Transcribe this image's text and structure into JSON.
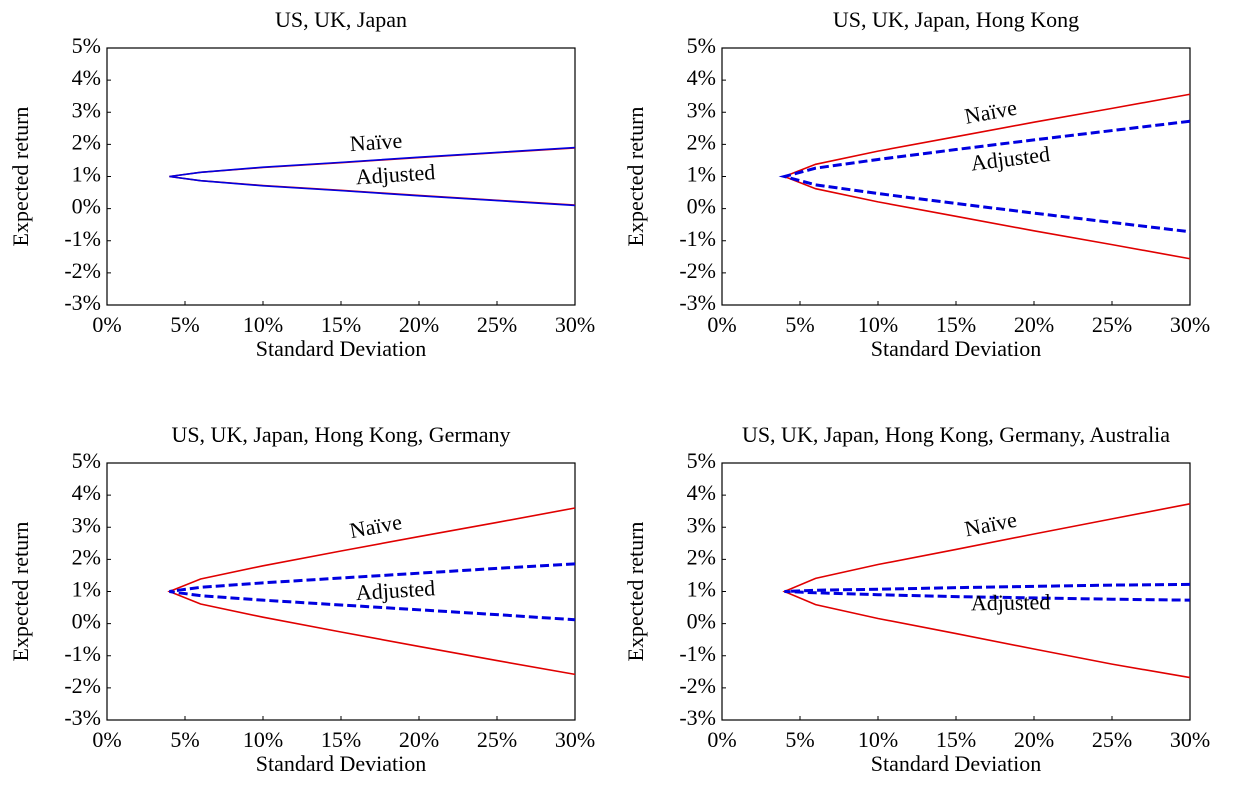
{
  "chart_data": [
    {
      "type": "line",
      "title": "US, UK, Japan",
      "x_label": "Standard Deviation",
      "y_label": "Expected return",
      "xlim": [
        0,
        30
      ],
      "ylim": [
        -3,
        5
      ],
      "xticks": [
        {
          "value": 0,
          "label": "0%"
        },
        {
          "value": 5,
          "label": "5%"
        },
        {
          "value": 10,
          "label": "10%"
        },
        {
          "value": 15,
          "label": "15%"
        },
        {
          "value": 20,
          "label": "20%"
        },
        {
          "value": 25,
          "label": "25%"
        },
        {
          "value": 30,
          "label": "30%"
        }
      ],
      "yticks": [
        {
          "value": -3,
          "label": "-3%"
        },
        {
          "value": -2,
          "label": "-2%"
        },
        {
          "value": -1,
          "label": "-1%"
        },
        {
          "value": 0,
          "label": "0%"
        },
        {
          "value": 1,
          "label": "1%"
        },
        {
          "value": 2,
          "label": "2%"
        },
        {
          "value": 3,
          "label": "3%"
        },
        {
          "value": 4,
          "label": "4%"
        },
        {
          "value": 5,
          "label": "5%"
        }
      ],
      "series": [
        {
          "name": "Naïve",
          "color": "#e00000",
          "line_style": "solid",
          "x": [
            30,
            25,
            20,
            15,
            10,
            6,
            4,
            6,
            10,
            15,
            20,
            25,
            30
          ],
          "values": [
            1.89,
            1.74,
            1.59,
            1.43,
            1.28,
            1.13,
            1.0,
            0.87,
            0.72,
            0.57,
            0.41,
            0.26,
            0.11
          ]
        },
        {
          "name": "Adjusted",
          "color": "#0000e0",
          "line_style": "solid",
          "x": [
            30,
            25,
            20,
            15,
            10,
            6,
            4,
            6,
            10,
            15,
            20,
            25,
            30
          ],
          "values": [
            1.9,
            1.75,
            1.6,
            1.44,
            1.29,
            1.13,
            1.0,
            0.87,
            0.71,
            0.56,
            0.4,
            0.25,
            0.1
          ]
        }
      ]
    },
    {
      "type": "line",
      "title": "US, UK, Japan, Hong Kong",
      "x_label": "Standard Deviation",
      "y_label": "Expected return",
      "xlim": [
        0,
        30
      ],
      "ylim": [
        -3,
        5
      ],
      "xticks": [
        {
          "value": 0,
          "label": "0%"
        },
        {
          "value": 5,
          "label": "5%"
        },
        {
          "value": 10,
          "label": "10%"
        },
        {
          "value": 15,
          "label": "15%"
        },
        {
          "value": 20,
          "label": "20%"
        },
        {
          "value": 25,
          "label": "25%"
        },
        {
          "value": 30,
          "label": "30%"
        }
      ],
      "yticks": [
        {
          "value": -3,
          "label": "-3%"
        },
        {
          "value": -2,
          "label": "-2%"
        },
        {
          "value": -1,
          "label": "-1%"
        },
        {
          "value": 0,
          "label": "0%"
        },
        {
          "value": 1,
          "label": "1%"
        },
        {
          "value": 2,
          "label": "2%"
        },
        {
          "value": 3,
          "label": "3%"
        },
        {
          "value": 4,
          "label": "4%"
        },
        {
          "value": 5,
          "label": "5%"
        }
      ],
      "series": [
        {
          "name": "Naïve",
          "color": "#e00000",
          "line_style": "solid",
          "x": [
            30,
            25,
            20,
            15,
            10,
            6,
            4,
            6,
            10,
            15,
            20,
            25,
            30
          ],
          "values": [
            3.56,
            3.12,
            2.69,
            2.24,
            1.79,
            1.38,
            1.0,
            0.62,
            0.21,
            -0.24,
            -0.69,
            -1.12,
            -1.56
          ]
        },
        {
          "name": "Adjusted",
          "color": "#0000e0",
          "line_style": "dashed",
          "x": [
            30,
            25,
            20,
            15,
            10,
            6,
            4,
            6,
            10,
            15,
            20,
            25,
            30
          ],
          "values": [
            2.72,
            2.43,
            2.14,
            1.84,
            1.53,
            1.26,
            1.0,
            0.74,
            0.47,
            0.16,
            -0.14,
            -0.43,
            -0.72
          ]
        }
      ]
    },
    {
      "type": "line",
      "title": "US, UK, Japan, Hong Kong, Germany",
      "x_label": "Standard Deviation",
      "y_label": "Expected return",
      "xlim": [
        0,
        30
      ],
      "ylim": [
        -3,
        5
      ],
      "xticks": [
        {
          "value": 0,
          "label": "0%"
        },
        {
          "value": 5,
          "label": "5%"
        },
        {
          "value": 10,
          "label": "10%"
        },
        {
          "value": 15,
          "label": "15%"
        },
        {
          "value": 20,
          "label": "20%"
        },
        {
          "value": 25,
          "label": "25%"
        },
        {
          "value": 30,
          "label": "30%"
        }
      ],
      "yticks": [
        {
          "value": -3,
          "label": "-3%"
        },
        {
          "value": -2,
          "label": "-2%"
        },
        {
          "value": -1,
          "label": "-1%"
        },
        {
          "value": 0,
          "label": "0%"
        },
        {
          "value": 1,
          "label": "1%"
        },
        {
          "value": 2,
          "label": "2%"
        },
        {
          "value": 3,
          "label": "3%"
        },
        {
          "value": 4,
          "label": "4%"
        },
        {
          "value": 5,
          "label": "5%"
        }
      ],
      "series": [
        {
          "name": "Naïve",
          "color": "#e00000",
          "line_style": "solid",
          "x": [
            30,
            25,
            20,
            15,
            10,
            6,
            4,
            6,
            10,
            15,
            20,
            25,
            30
          ],
          "values": [
            3.6,
            3.15,
            2.71,
            2.26,
            1.8,
            1.39,
            1.0,
            0.61,
            0.2,
            -0.26,
            -0.71,
            -1.15,
            -1.58
          ]
        },
        {
          "name": "Adjusted",
          "color": "#0000e0",
          "line_style": "dashed",
          "x": [
            30,
            25,
            20,
            15,
            10,
            6,
            4,
            6,
            10,
            15,
            20,
            25,
            30
          ],
          "values": [
            1.86,
            1.72,
            1.57,
            1.42,
            1.27,
            1.13,
            1.0,
            0.87,
            0.73,
            0.58,
            0.43,
            0.28,
            0.12
          ]
        }
      ]
    },
    {
      "type": "line",
      "title": "US, UK, Japan, Hong Kong, Germany, Australia",
      "x_label": "Standard Deviation",
      "y_label": "Expected return",
      "xlim": [
        0,
        30
      ],
      "ylim": [
        -3,
        5
      ],
      "xticks": [
        {
          "value": 0,
          "label": "0%"
        },
        {
          "value": 5,
          "label": "5%"
        },
        {
          "value": 10,
          "label": "10%"
        },
        {
          "value": 15,
          "label": "15%"
        },
        {
          "value": 20,
          "label": "20%"
        },
        {
          "value": 25,
          "label": "25%"
        },
        {
          "value": 30,
          "label": "30%"
        }
      ],
      "yticks": [
        {
          "value": -3,
          "label": "-3%"
        },
        {
          "value": -2,
          "label": "-2%"
        },
        {
          "value": -1,
          "label": "-1%"
        },
        {
          "value": 0,
          "label": "0%"
        },
        {
          "value": 1,
          "label": "1%"
        },
        {
          "value": 2,
          "label": "2%"
        },
        {
          "value": 3,
          "label": "3%"
        },
        {
          "value": 4,
          "label": "4%"
        },
        {
          "value": 5,
          "label": "5%"
        }
      ],
      "series": [
        {
          "name": "Naïve",
          "color": "#e00000",
          "line_style": "solid",
          "x": [
            30,
            25,
            20,
            15,
            10,
            6,
            4,
            6,
            10,
            15,
            20,
            25,
            30
          ],
          "values": [
            3.73,
            3.26,
            2.79,
            2.31,
            1.84,
            1.41,
            1.0,
            0.59,
            0.16,
            -0.31,
            -0.79,
            -1.26,
            -1.68
          ]
        },
        {
          "name": "Adjusted",
          "color": "#0000e0",
          "line_style": "dashed",
          "x": [
            30,
            25,
            20,
            15,
            10,
            6,
            4,
            6,
            10,
            15,
            20,
            25,
            30
          ],
          "values": [
            1.22,
            1.2,
            1.16,
            1.12,
            1.07,
            1.04,
            1.0,
            0.96,
            0.9,
            0.84,
            0.8,
            0.76,
            0.73
          ]
        }
      ]
    }
  ]
}
